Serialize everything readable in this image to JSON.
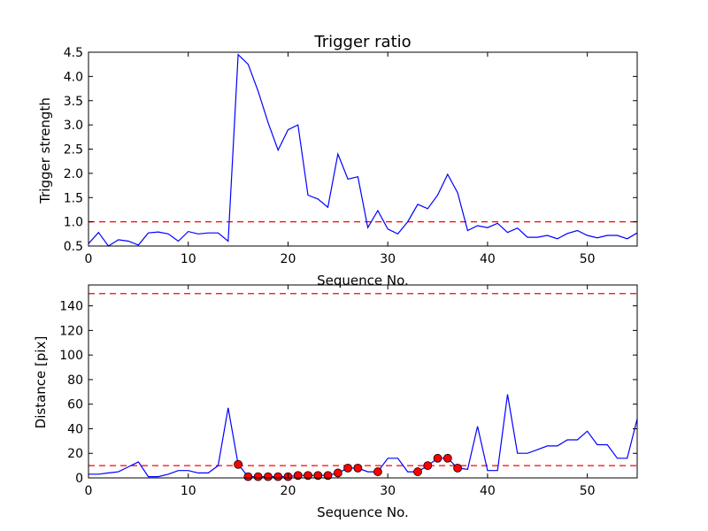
{
  "chart_data": [
    {
      "type": "line",
      "title": "Trigger ratio",
      "xlabel": "Sequence No.",
      "ylabel": "Trigger strength",
      "xlim": [
        0,
        55
      ],
      "ylim": [
        0.5,
        4.5
      ],
      "xticks": [
        0,
        10,
        20,
        30,
        40,
        50
      ],
      "xtick_labels": [
        "0",
        "10",
        "20",
        "30",
        "40",
        "50"
      ],
      "yticks": [
        0.5,
        1.0,
        1.5,
        2.0,
        2.5,
        3.0,
        3.5,
        4.0,
        4.5
      ],
      "ytick_labels": [
        "0.5",
        "1.0",
        "1.5",
        "2.0",
        "2.5",
        "3.0",
        "3.5",
        "4.0",
        "4.5"
      ],
      "grid": false,
      "series_color": "#0000ff",
      "x": [
        0,
        1,
        2,
        3,
        4,
        5,
        6,
        7,
        8,
        9,
        10,
        11,
        12,
        13,
        14,
        15,
        16,
        17,
        18,
        19,
        20,
        21,
        22,
        23,
        24,
        25,
        26,
        27,
        28,
        29,
        30,
        31,
        32,
        33,
        34,
        35,
        36,
        37,
        38,
        39,
        40,
        41,
        42,
        43,
        44,
        45,
        46,
        47,
        48,
        49,
        50,
        51,
        52,
        53,
        54,
        55
      ],
      "y": [
        0.55,
        0.78,
        0.5,
        0.63,
        0.6,
        0.52,
        0.77,
        0.79,
        0.75,
        0.6,
        0.8,
        0.75,
        0.77,
        0.77,
        0.6,
        4.45,
        4.25,
        3.7,
        3.05,
        2.48,
        2.9,
        3.0,
        1.55,
        1.47,
        1.3,
        2.4,
        1.88,
        1.93,
        0.88,
        1.23,
        0.85,
        0.75,
        1.0,
        1.36,
        1.27,
        1.55,
        1.98,
        1.6,
        0.82,
        0.92,
        0.88,
        0.97,
        0.78,
        0.87,
        0.68,
        0.68,
        0.72,
        0.65,
        0.76,
        0.82,
        0.72,
        0.67,
        0.72,
        0.72,
        0.65,
        0.77
      ],
      "threshold": 1.0,
      "threshold_color": "#ff0000"
    },
    {
      "type": "line",
      "title": "",
      "xlabel": "Sequence No.",
      "ylabel": "Distance [pix]",
      "xlim": [
        0,
        55
      ],
      "ylim": [
        0,
        157
      ],
      "xticks": [
        0,
        10,
        20,
        30,
        40,
        50
      ],
      "xtick_labels": [
        "0",
        "10",
        "20",
        "30",
        "40",
        "50"
      ],
      "yticks": [
        0,
        20,
        40,
        60,
        80,
        100,
        120,
        140
      ],
      "ytick_labels": [
        "0",
        "20",
        "40",
        "60",
        "80",
        "100",
        "120",
        "140"
      ],
      "grid": false,
      "series_color": "#0000ff",
      "marker_color": "#ff0000",
      "x": [
        0,
        1,
        2,
        3,
        4,
        5,
        6,
        7,
        8,
        9,
        10,
        11,
        12,
        13,
        14,
        15,
        16,
        17,
        18,
        19,
        20,
        21,
        22,
        23,
        24,
        25,
        26,
        27,
        28,
        29,
        30,
        31,
        32,
        33,
        34,
        35,
        36,
        37,
        38,
        39,
        40,
        41,
        42,
        43,
        44,
        45,
        46,
        47,
        48,
        49,
        50,
        51,
        52,
        53,
        54,
        55
      ],
      "y": [
        3,
        3,
        4,
        5,
        9,
        13,
        1,
        1,
        3,
        6,
        6,
        4,
        4,
        10,
        57,
        11,
        1,
        1,
        1,
        1,
        1,
        2,
        2,
        2,
        2,
        4,
        8,
        8,
        5,
        5,
        16,
        16,
        5,
        5,
        10,
        16,
        16,
        8,
        7,
        42,
        6,
        6,
        68,
        20,
        20,
        23,
        26,
        26,
        31,
        31,
        38,
        27,
        27,
        16,
        16,
        48
      ],
      "highlighted_points": {
        "x": [
          15,
          16,
          17,
          18,
          19,
          20,
          21,
          22,
          23,
          24,
          25,
          26,
          27,
          29,
          33,
          34,
          35,
          36,
          37
        ],
        "y": [
          11,
          1,
          1,
          1,
          1,
          1,
          2,
          2,
          2,
          2,
          4,
          8,
          8,
          5,
          5,
          10,
          16,
          16,
          8
        ]
      },
      "thresholds": [
        10,
        150
      ],
      "threshold_color": "#ff0000"
    }
  ]
}
